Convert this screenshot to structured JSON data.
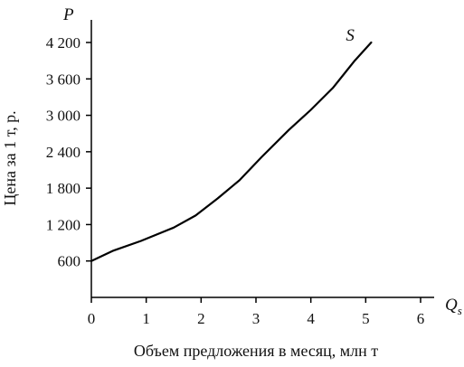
{
  "chart_data": {
    "type": "line",
    "xlabel": "Объем предложения в месяц, млн т",
    "ylabel": "Цена за 1 т, р.",
    "x_axis_symbol": "Q",
    "x_axis_symbol_sub": "s",
    "y_axis_symbol": "P",
    "xlim": [
      0,
      6
    ],
    "ylim": [
      0,
      4200
    ],
    "x_ticks": [
      0,
      1,
      2,
      3,
      4,
      5,
      6
    ],
    "x_tick_labels": [
      "0",
      "1",
      "2",
      "3",
      "4",
      "5",
      "6"
    ],
    "y_ticks": [
      600,
      1200,
      1800,
      2400,
      3000,
      3600,
      4200
    ],
    "y_tick_labels": [
      "600",
      "1 200",
      "1 800",
      "2 400",
      "3 000",
      "3 600",
      "4 200"
    ],
    "grid": false,
    "series": [
      {
        "name": "S",
        "color": "#000000",
        "x": [
          0,
          0.4,
          0.9,
          1.5,
          1.9,
          2.3,
          2.7,
          3.1,
          3.6,
          4.0,
          4.4,
          4.8,
          5.1
        ],
        "y": [
          600,
          770,
          930,
          1150,
          1350,
          1630,
          1930,
          2310,
          2760,
          3090,
          3450,
          3900,
          4200
        ]
      }
    ]
  }
}
